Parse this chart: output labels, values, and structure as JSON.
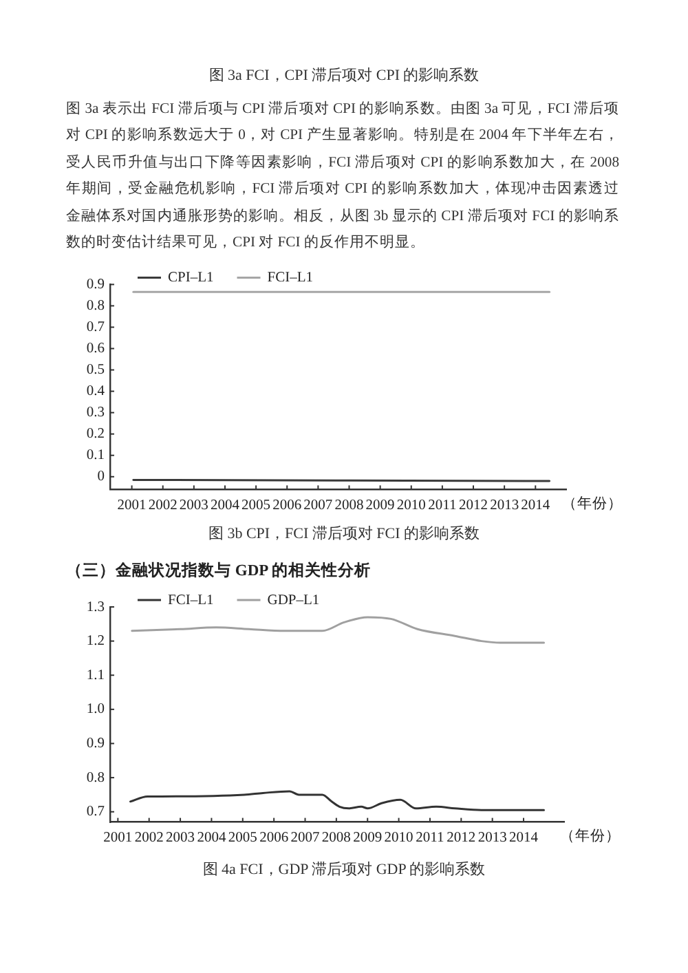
{
  "chart_data": [
    {
      "type": "line",
      "title": "图 3b CPI，FCI 滞后项对 FCI 的影响系数",
      "xlabel": "（年份）",
      "annotations": [
        "图 3a FCI，CPI 滞后项对 CPI 的影响系数",
        "图 3a 表示出 FCI 滞后项与 CPI 滞后项对 CPI 的影响系数。由图 3a 可见，FCI 滞后项对 CPI 的影响系数远大于 0，对 CPI 产生显著影响。特别是在 2004 年下半年左右，受人民币升值与出口下降等因素影响，FCI 滞后项对 CPI 的影响系数加大，在 2008 年期间，受金融危机影响，FCI 滞后项对 CPI 的影响系数加大，体现冲击因素透过金融体系对国内通胀形势的影响。相反，从图 3b 显示的 CPI 滞后项对 FCI 的影响系数的时变估计结果可见，CPI 对 FCI 的反作用不明显。"
      ],
      "x": [
        2001.05,
        2014.45
      ],
      "series": [
        {
          "name": "CPI–L1",
          "color": "#3a3a3a",
          "values": [
            -0.015,
            -0.02
          ]
        },
        {
          "name": "FCI–L1",
          "color": "#a6a6a6",
          "values": [
            0.865,
            0.865
          ]
        }
      ],
      "xlim": [
        2000.3,
        2015
      ],
      "xticks": [
        2001,
        2002,
        2003,
        2004,
        2005,
        2006,
        2007,
        2008,
        2009,
        2010,
        2011,
        2012,
        2013,
        2014
      ],
      "ylim": [
        -0.06,
        0.9
      ],
      "yticks": [
        0,
        0.1,
        0.2,
        0.3,
        0.4,
        0.5,
        0.6,
        0.7,
        0.8,
        0.9
      ],
      "legend": "top left"
    },
    {
      "type": "line",
      "title": "图 4a FCI，GDP 滞后项对 GDP 的影响系数",
      "xlabel": "（年份）",
      "annotations": [
        "（三）金融状况指数与 GDP 的相关性分析"
      ],
      "series": [
        {
          "name": "FCI–L1",
          "color": "#333333",
          "x": [
            2001.4,
            2001.95,
            2002.4,
            2005.05,
            2005.65,
            2006.5,
            2006.8,
            2007.55,
            2007.85,
            2008.1,
            2008.4,
            2008.8,
            2009.0,
            2009.45,
            2010.05,
            2010.55,
            2011.2,
            2011.8,
            2012.65,
            2014.65
          ],
          "values": [
            0.73,
            0.745,
            0.745,
            0.75,
            0.755,
            0.76,
            0.75,
            0.75,
            0.73,
            0.715,
            0.71,
            0.715,
            0.71,
            0.725,
            0.735,
            0.71,
            0.715,
            0.71,
            0.705,
            0.705
          ]
        },
        {
          "name": "GDP–L1",
          "color": "#a0a0a0",
          "x": [
            2001.45,
            2003.0,
            2004.15,
            2005.2,
            2006.35,
            2007.55,
            2008.25,
            2009.0,
            2009.75,
            2010.6,
            2011.8,
            2012.65,
            2013.25,
            2014.65
          ],
          "values": [
            1.23,
            1.235,
            1.24,
            1.235,
            1.23,
            1.23,
            1.255,
            1.27,
            1.265,
            1.235,
            1.215,
            1.2,
            1.195,
            1.195
          ]
        }
      ],
      "xlim": [
        2000.75,
        2015.3
      ],
      "xticks": [
        2001,
        2002,
        2003,
        2004,
        2005,
        2006,
        2007,
        2008,
        2009,
        2010,
        2011,
        2012,
        2013,
        2014
      ],
      "ylim": [
        0.67,
        1.3
      ],
      "yticks": [
        0.7,
        0.8,
        0.9,
        {
          "value": 1,
          "label": "1.0"
        },
        1.1,
        1.2,
        1.3
      ],
      "legend": "top left"
    }
  ]
}
